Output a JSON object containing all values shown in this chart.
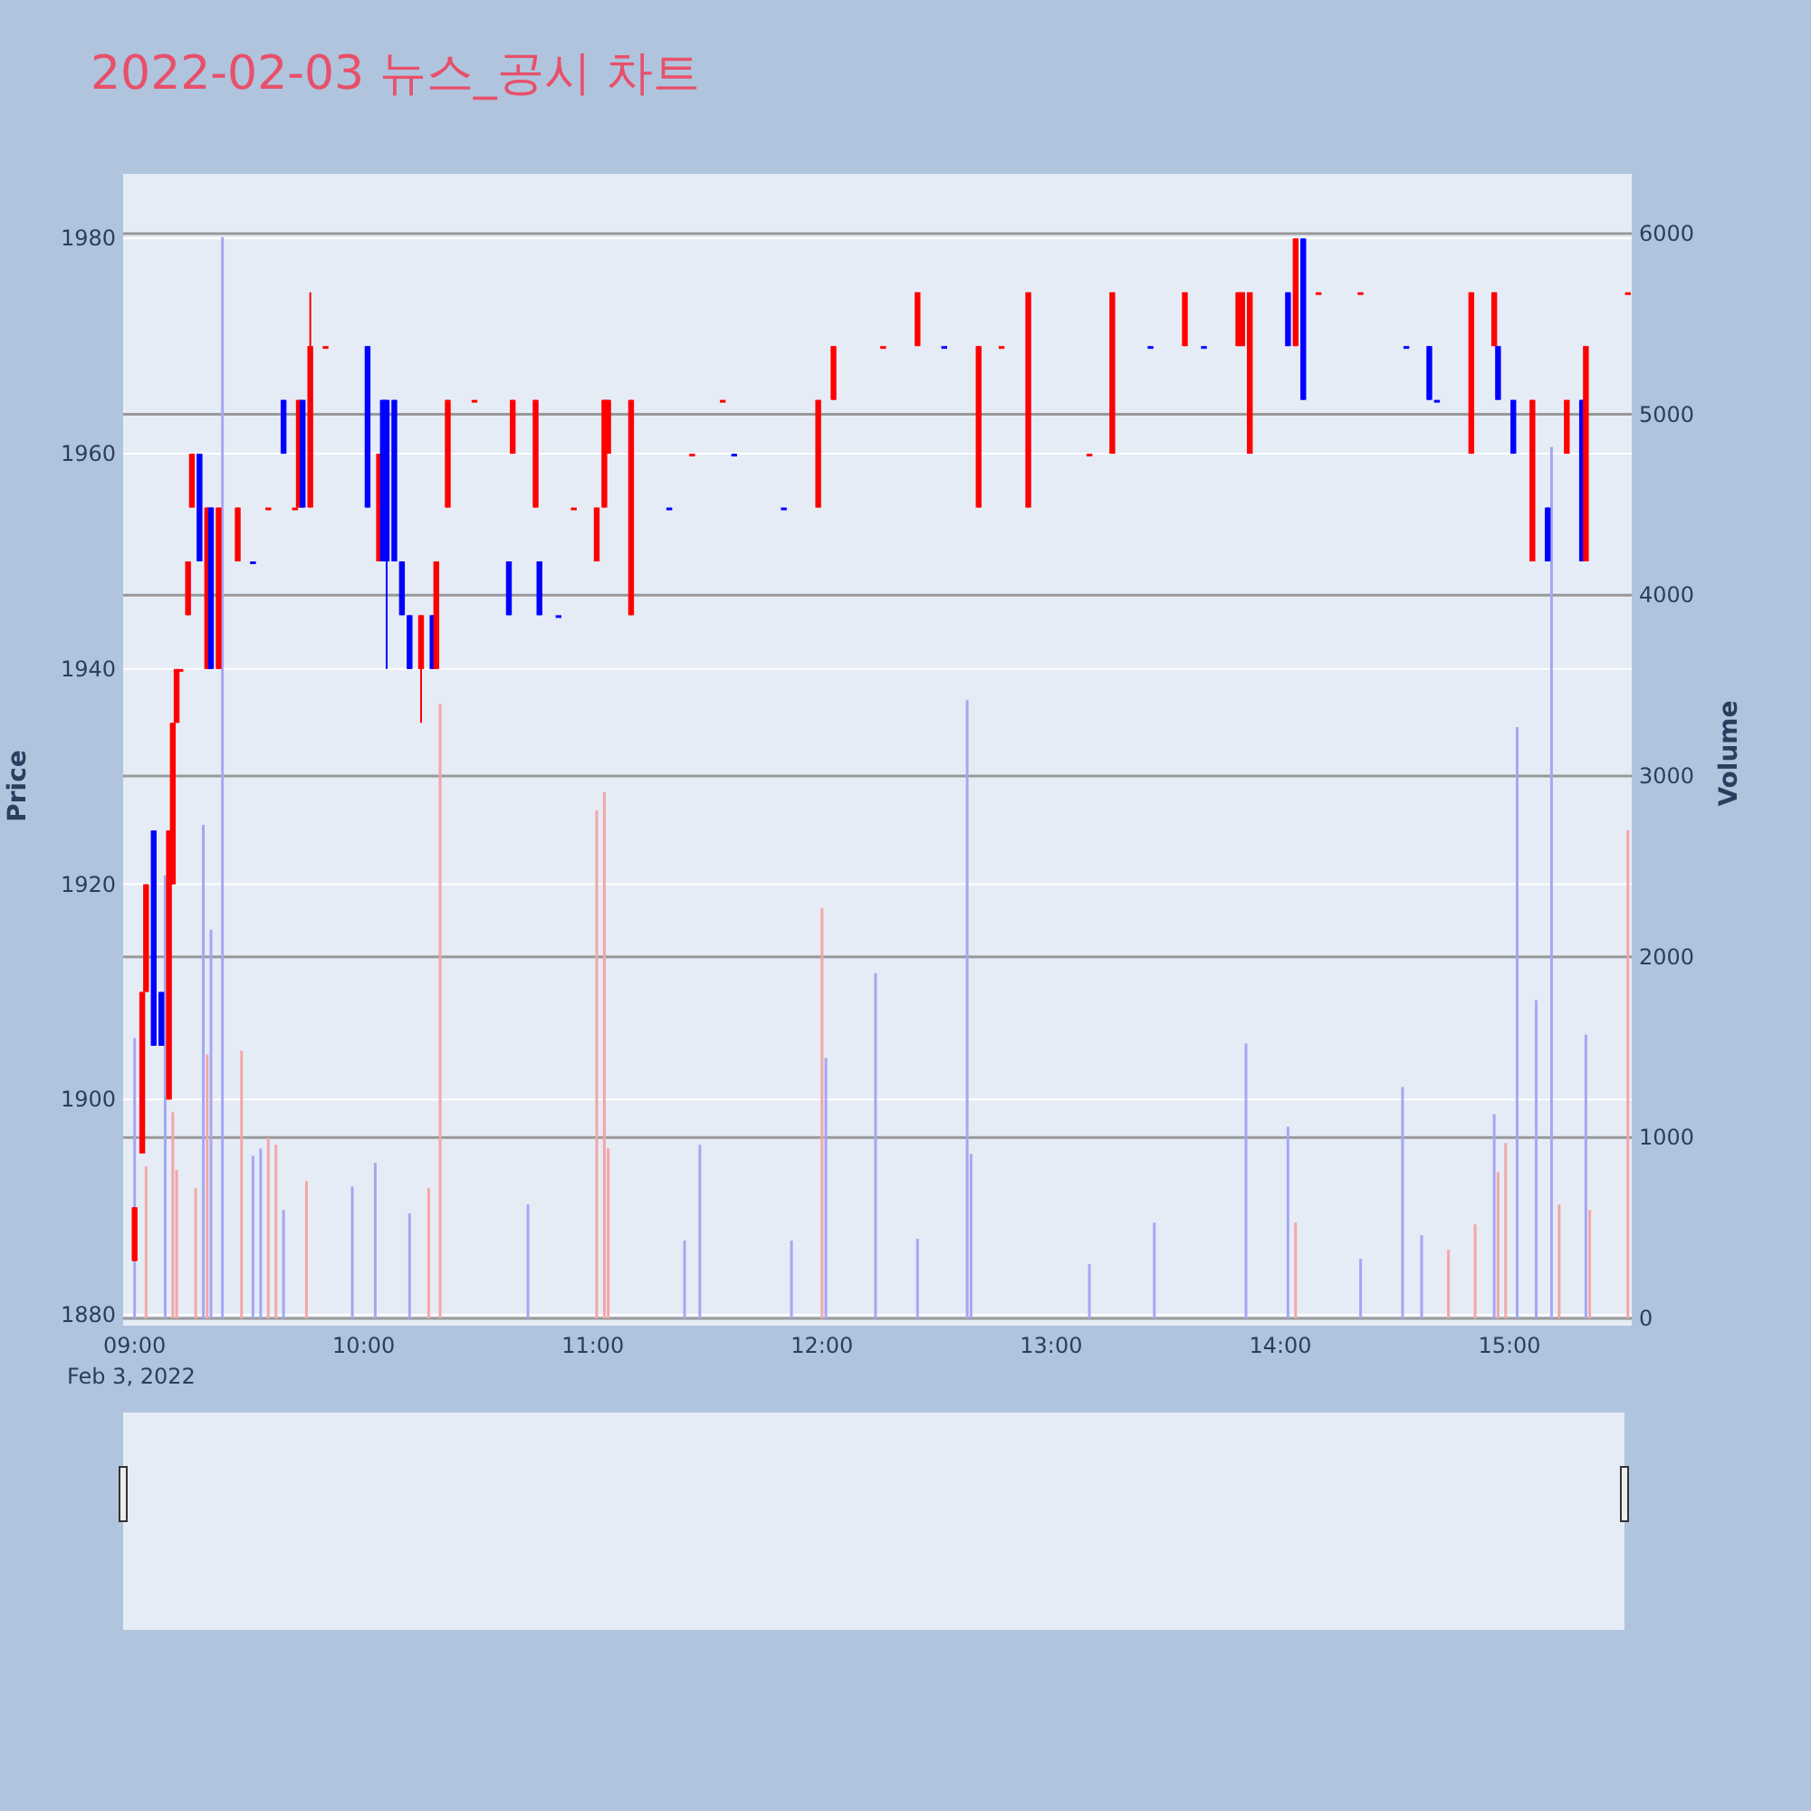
{
  "chart_data": {
    "type": "candlestick",
    "title": "2022-02-03 뉴스_공시 차트",
    "ylabel": "Price",
    "y2label": "Volume",
    "annotations": [
      "Feb 3, 2022"
    ],
    "grid": true,
    "xlim": [
      "2022-02-03T08:57",
      "2022-02-03T15:32"
    ],
    "xticks": [
      {
        "value": "2022-02-03T09:00",
        "label": "09:00"
      },
      {
        "value": "2022-02-03T10:00",
        "label": "10:00"
      },
      {
        "value": "2022-02-03T11:00",
        "label": "11:00"
      },
      {
        "value": "2022-02-03T12:00",
        "label": "12:00"
      },
      {
        "value": "2022-02-03T13:00",
        "label": "13:00"
      },
      {
        "value": "2022-02-03T14:00",
        "label": "14:00"
      },
      {
        "value": "2022-02-03T15:00",
        "label": "15:00"
      }
    ],
    "ylim": [
      1879,
      1986
    ],
    "yticks": [
      1880,
      1900,
      1920,
      1940,
      1960,
      1980
    ],
    "y2lim": [
      -40,
      6330
    ],
    "y2ticks": [
      0,
      1000,
      2000,
      3000,
      4000,
      5000,
      6000
    ],
    "series": [
      {
        "type": "bar",
        "axis": "y2",
        "x": [
          "2022-02-03T09:00",
          "2022-02-03T09:03",
          "2022-02-03T09:08",
          "2022-02-03T09:10",
          "2022-02-03T09:11",
          "2022-02-03T09:16",
          "2022-02-03T09:18",
          "2022-02-03T09:19",
          "2022-02-03T09:20",
          "2022-02-03T09:23",
          "2022-02-03T09:28",
          "2022-02-03T09:31",
          "2022-02-03T09:33",
          "2022-02-03T09:35",
          "2022-02-03T09:37",
          "2022-02-03T09:39",
          "2022-02-03T09:45",
          "2022-02-03T09:57",
          "2022-02-03T10:03",
          "2022-02-03T10:12",
          "2022-02-03T10:17",
          "2022-02-03T10:20",
          "2022-02-03T10:43",
          "2022-02-03T11:01",
          "2022-02-03T11:03",
          "2022-02-03T11:04",
          "2022-02-03T11:24",
          "2022-02-03T11:28",
          "2022-02-03T11:52",
          "2022-02-03T12:00",
          "2022-02-03T12:01",
          "2022-02-03T12:14",
          "2022-02-03T12:25",
          "2022-02-03T12:38",
          "2022-02-03T12:39",
          "2022-02-03T13:10",
          "2022-02-03T13:27",
          "2022-02-03T13:51",
          "2022-02-03T14:02",
          "2022-02-03T14:04",
          "2022-02-03T14:21",
          "2022-02-03T14:32",
          "2022-02-03T14:37",
          "2022-02-03T14:44",
          "2022-02-03T14:51",
          "2022-02-03T14:56",
          "2022-02-03T14:57",
          "2022-02-03T14:59",
          "2022-02-03T15:02",
          "2022-02-03T15:07",
          "2022-02-03T15:11",
          "2022-02-03T15:13",
          "2022-02-03T15:20",
          "2022-02-03T15:21",
          "2022-02-03T15:31"
        ],
        "values": [
          1550,
          840,
          2450,
          1140,
          820,
          720,
          2730,
          1460,
          2150,
          5980,
          1480,
          900,
          940,
          1000,
          960,
          600,
          760,
          730,
          860,
          580,
          720,
          3400,
          630,
          2810,
          2910,
          940,
          430,
          960,
          430,
          2270,
          1440,
          1910,
          440,
          3420,
          910,
          300,
          530,
          1520,
          1060,
          530,
          330,
          1280,
          460,
          380,
          520,
          1130,
          810,
          970,
          3270,
          1760,
          4820,
          630,
          1570,
          600,
          2700
        ],
        "colors": [
          "#a6a6f4",
          "#f4a6a6",
          "#a6a6f4",
          "#f4a6a6",
          "#f4a6a6",
          "#f4a6a6",
          "#a6a6f4",
          "#f4a6a6",
          "#a6a6f4",
          "#a6a6f4",
          "#f4a6a6",
          "#a6a6f4",
          "#a6a6f4",
          "#f4a6a6",
          "#f4a6a6",
          "#a6a6f4",
          "#f4a6a6",
          "#a6a6f4",
          "#a6a6f4",
          "#a6a6f4",
          "#f4a6a6",
          "#f4a6a6",
          "#a6a6f4",
          "#f4a6a6",
          "#f4a6a6",
          "#f4a6a6",
          "#a6a6f4",
          "#a6a6f4",
          "#a6a6f4",
          "#f4a6a6",
          "#a6a6f4",
          "#a6a6f4",
          "#a6a6f4",
          "#a6a6f4",
          "#a6a6f4",
          "#a6a6f4",
          "#a6a6f4",
          "#a6a6f4",
          "#a6a6f4",
          "#f4a6a6",
          "#a6a6f4",
          "#a6a6f4",
          "#a6a6f4",
          "#f4a6a6",
          "#f4a6a6",
          "#a6a6f4",
          "#f4a6a6",
          "#f4a6a6",
          "#a6a6f4",
          "#a6a6f4",
          "#a6a6f4",
          "#f4a6a6",
          "#a6a6f4",
          "#f4a6a6",
          "#f4a6a6"
        ]
      },
      {
        "type": "candlestick",
        "x": [
          "2022-02-03T09:00",
          "2022-02-03T09:02",
          "2022-02-03T09:03",
          "2022-02-03T09:05",
          "2022-02-03T09:07",
          "2022-02-03T09:09",
          "2022-02-03T09:10",
          "2022-02-03T09:11",
          "2022-02-03T09:12",
          "2022-02-03T09:14",
          "2022-02-03T09:15",
          "2022-02-03T09:17",
          "2022-02-03T09:19",
          "2022-02-03T09:20",
          "2022-02-03T09:22",
          "2022-02-03T09:27",
          "2022-02-03T09:31",
          "2022-02-03T09:35",
          "2022-02-03T09:39",
          "2022-02-03T09:42",
          "2022-02-03T09:43",
          "2022-02-03T09:44",
          "2022-02-03T09:46",
          "2022-02-03T09:50",
          "2022-02-03T10:01",
          "2022-02-03T10:04",
          "2022-02-03T10:05",
          "2022-02-03T10:06",
          "2022-02-03T10:08",
          "2022-02-03T10:10",
          "2022-02-03T10:12",
          "2022-02-03T10:15",
          "2022-02-03T10:18",
          "2022-02-03T10:19",
          "2022-02-03T10:22",
          "2022-02-03T10:29",
          "2022-02-03T10:38",
          "2022-02-03T10:39",
          "2022-02-03T10:45",
          "2022-02-03T10:46",
          "2022-02-03T10:51",
          "2022-02-03T10:55",
          "2022-02-03T11:01",
          "2022-02-03T11:03",
          "2022-02-03T11:04",
          "2022-02-03T11:10",
          "2022-02-03T11:20",
          "2022-02-03T11:26",
          "2022-02-03T11:34",
          "2022-02-03T11:37",
          "2022-02-03T11:50",
          "2022-02-03T11:59",
          "2022-02-03T12:03",
          "2022-02-03T12:16",
          "2022-02-03T12:25",
          "2022-02-03T12:32",
          "2022-02-03T12:41",
          "2022-02-03T12:47",
          "2022-02-03T12:54",
          "2022-02-03T13:10",
          "2022-02-03T13:16",
          "2022-02-03T13:26",
          "2022-02-03T13:35",
          "2022-02-03T13:40",
          "2022-02-03T13:49",
          "2022-02-03T13:50",
          "2022-02-03T13:52",
          "2022-02-03T14:02",
          "2022-02-03T14:04",
          "2022-02-03T14:06",
          "2022-02-03T14:10",
          "2022-02-03T14:21",
          "2022-02-03T14:33",
          "2022-02-03T14:39",
          "2022-02-03T14:41",
          "2022-02-03T14:50",
          "2022-02-03T14:56",
          "2022-02-03T14:57",
          "2022-02-03T15:01",
          "2022-02-03T15:06",
          "2022-02-03T15:10",
          "2022-02-03T15:15",
          "2022-02-03T15:19",
          "2022-02-03T15:20",
          "2022-02-03T15:31"
        ],
        "ohlc": [
          [
            1885,
            1890,
            1885,
            1890
          ],
          [
            1895,
            1910,
            1895,
            1910
          ],
          [
            1910,
            1920,
            1910,
            1920
          ],
          [
            1925,
            1925,
            1905,
            1905
          ],
          [
            1910,
            1910,
            1905,
            1905
          ],
          [
            1900,
            1925,
            1900,
            1925
          ],
          [
            1920,
            1935,
            1920,
            1935
          ],
          [
            1935,
            1940,
            1935,
            1940
          ],
          [
            1940,
            1940,
            1940,
            1940
          ],
          [
            1945,
            1950,
            1945,
            1950
          ],
          [
            1955,
            1960,
            1955,
            1960
          ],
          [
            1960,
            1960,
            1950,
            1950
          ],
          [
            1940,
            1955,
            1940,
            1955
          ],
          [
            1955,
            1955,
            1940,
            1940
          ],
          [
            1940,
            1955,
            1940,
            1955
          ],
          [
            1950,
            1955,
            1950,
            1955
          ],
          [
            1950,
            1950,
            1950,
            1950
          ],
          [
            1955,
            1955,
            1955,
            1955
          ],
          [
            1965,
            1965,
            1960,
            1960
          ],
          [
            1955,
            1955,
            1955,
            1955
          ],
          [
            1955,
            1965,
            1955,
            1965
          ],
          [
            1965,
            1965,
            1955,
            1955
          ],
          [
            1955,
            1975,
            1955,
            1970
          ],
          [
            1970,
            1970,
            1970,
            1970
          ],
          [
            1970,
            1970,
            1955,
            1955
          ],
          [
            1950,
            1960,
            1950,
            1960
          ],
          [
            1965,
            1965,
            1950,
            1950
          ],
          [
            1965,
            1965,
            1940,
            1950
          ],
          [
            1965,
            1965,
            1950,
            1950
          ],
          [
            1950,
            1950,
            1945,
            1945
          ],
          [
            1945,
            1945,
            1940,
            1940
          ],
          [
            1940,
            1945,
            1935,
            1945
          ],
          [
            1945,
            1945,
            1940,
            1940
          ],
          [
            1940,
            1950,
            1940,
            1950
          ],
          [
            1955,
            1965,
            1955,
            1965
          ],
          [
            1965,
            1965,
            1965,
            1965
          ],
          [
            1950,
            1950,
            1945,
            1945
          ],
          [
            1960,
            1965,
            1960,
            1965
          ],
          [
            1955,
            1965,
            1955,
            1965
          ],
          [
            1950,
            1950,
            1945,
            1945
          ],
          [
            1945,
            1945,
            1945,
            1945
          ],
          [
            1955,
            1955,
            1955,
            1955
          ],
          [
            1950,
            1955,
            1950,
            1955
          ],
          [
            1955,
            1965,
            1955,
            1965
          ],
          [
            1960,
            1965,
            1960,
            1965
          ],
          [
            1945,
            1965,
            1945,
            1965
          ],
          [
            1955,
            1955,
            1955,
            1955
          ],
          [
            1960,
            1960,
            1960,
            1960
          ],
          [
            1965,
            1965,
            1965,
            1965
          ],
          [
            1960,
            1960,
            1960,
            1960
          ],
          [
            1955,
            1955,
            1955,
            1955
          ],
          [
            1955,
            1965,
            1955,
            1965
          ],
          [
            1965,
            1970,
            1965,
            1970
          ],
          [
            1970,
            1970,
            1970,
            1970
          ],
          [
            1970,
            1975,
            1970,
            1975
          ],
          [
            1970,
            1970,
            1970,
            1970
          ],
          [
            1955,
            1970,
            1955,
            1970
          ],
          [
            1970,
            1970,
            1970,
            1970
          ],
          [
            1955,
            1975,
            1955,
            1975
          ],
          [
            1960,
            1960,
            1960,
            1960
          ],
          [
            1960,
            1975,
            1960,
            1975
          ],
          [
            1970,
            1970,
            1970,
            1970
          ],
          [
            1970,
            1975,
            1970,
            1975
          ],
          [
            1970,
            1970,
            1970,
            1970
          ],
          [
            1970,
            1975,
            1970,
            1975
          ],
          [
            1970,
            1975,
            1970,
            1975
          ],
          [
            1960,
            1975,
            1960,
            1975
          ],
          [
            1975,
            1975,
            1970,
            1970
          ],
          [
            1970,
            1980,
            1970,
            1980
          ],
          [
            1980,
            1980,
            1965,
            1965
          ],
          [
            1975,
            1975,
            1975,
            1975
          ],
          [
            1975,
            1975,
            1975,
            1975
          ],
          [
            1970,
            1970,
            1970,
            1970
          ],
          [
            1970,
            1970,
            1965,
            1965
          ],
          [
            1965,
            1965,
            1965,
            1965
          ],
          [
            1960,
            1975,
            1960,
            1975
          ],
          [
            1970,
            1975,
            1970,
            1975
          ],
          [
            1970,
            1970,
            1965,
            1965
          ],
          [
            1965,
            1965,
            1960,
            1960
          ],
          [
            1950,
            1965,
            1950,
            1965
          ],
          [
            1955,
            1955,
            1950,
            1950
          ],
          [
            1960,
            1965,
            1960,
            1965
          ],
          [
            1965,
            1965,
            1950,
            1950
          ],
          [
            1950,
            1970,
            1950,
            1970
          ],
          [
            1975,
            1975,
            1975,
            1975
          ]
        ],
        "colors": [
          "#ff0000",
          "#ff0000",
          "#ff0000",
          "#0000ff",
          "#0000ff",
          "#ff0000",
          "#ff0000",
          "#ff0000",
          "#ff0000",
          "#ff0000",
          "#ff0000",
          "#0000ff",
          "#ff0000",
          "#0000ff",
          "#ff0000",
          "#ff0000",
          "#0000ff",
          "#ff0000",
          "#0000ff",
          "#ff0000",
          "#ff0000",
          "#0000ff",
          "#ff0000",
          "#ff0000",
          "#0000ff",
          "#ff0000",
          "#0000ff",
          "#0000ff",
          "#0000ff",
          "#0000ff",
          "#0000ff",
          "#ff0000",
          "#0000ff",
          "#ff0000",
          "#ff0000",
          "#ff0000",
          "#0000ff",
          "#ff0000",
          "#ff0000",
          "#0000ff",
          "#0000ff",
          "#ff0000",
          "#ff0000",
          "#ff0000",
          "#ff0000",
          "#ff0000",
          "#0000ff",
          "#ff0000",
          "#ff0000",
          "#0000ff",
          "#0000ff",
          "#ff0000",
          "#ff0000",
          "#ff0000",
          "#ff0000",
          "#0000ff",
          "#ff0000",
          "#ff0000",
          "#ff0000",
          "#ff0000",
          "#ff0000",
          "#0000ff",
          "#ff0000",
          "#0000ff",
          "#ff0000",
          "#ff0000",
          "#ff0000",
          "#0000ff",
          "#ff0000",
          "#0000ff",
          "#ff0000",
          "#ff0000",
          "#0000ff",
          "#0000ff",
          "#0000ff",
          "#ff0000",
          "#ff0000",
          "#0000ff",
          "#0000ff",
          "#ff0000",
          "#0000ff",
          "#ff0000",
          "#0000ff",
          "#ff0000",
          "#ff0000"
        ]
      }
    ]
  }
}
